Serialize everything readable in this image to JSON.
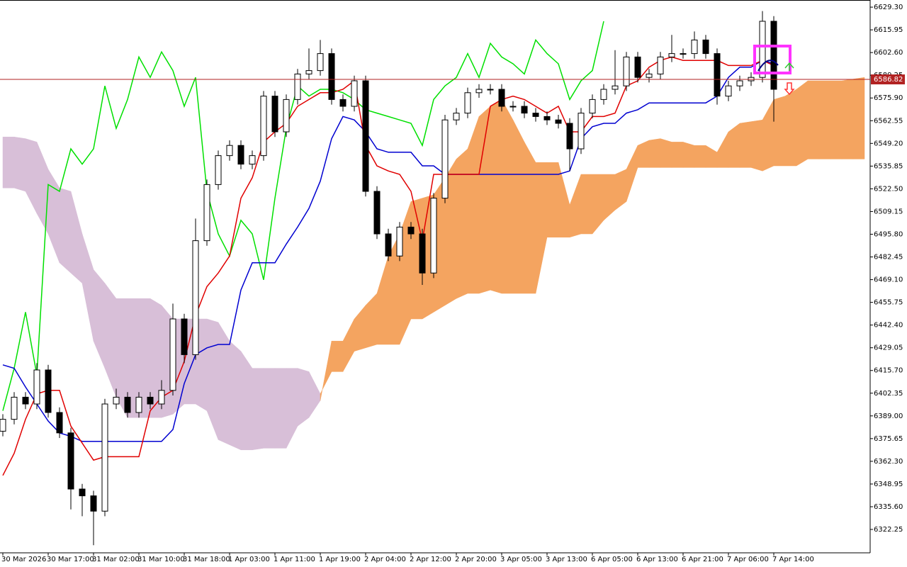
{
  "chart_data": {
    "type": "candlestick",
    "ylim": [
      6308.5,
      6633.5
    ],
    "yticks": [
      {
        "value": 6629.3,
        "label": "6629.30"
      },
      {
        "value": 6615.95,
        "label": "6615.95"
      },
      {
        "value": 6602.6,
        "label": "6602.60"
      },
      {
        "value": 6589.25,
        "label": "6589.25"
      },
      {
        "value": 6575.9,
        "label": "6575.90"
      },
      {
        "value": 6562.55,
        "label": "6562.55"
      },
      {
        "value": 6549.2,
        "label": "6549.20"
      },
      {
        "value": 6535.85,
        "label": "6535.85"
      },
      {
        "value": 6522.5,
        "label": "6522.50"
      },
      {
        "value": 6509.15,
        "label": "6509.15"
      },
      {
        "value": 6495.8,
        "label": "6495.80"
      },
      {
        "value": 6482.45,
        "label": "6482.45"
      },
      {
        "value": 6469.1,
        "label": "6469.10"
      },
      {
        "value": 6455.75,
        "label": "6455.75"
      },
      {
        "value": 6442.4,
        "label": "6442.40"
      },
      {
        "value": 6429.05,
        "label": "6429.05"
      },
      {
        "value": 6415.7,
        "label": "6415.70"
      },
      {
        "value": 6402.35,
        "label": "6402.35"
      },
      {
        "value": 6389,
        "label": "6389.00"
      },
      {
        "value": 6375.65,
        "label": "6375.65"
      },
      {
        "value": 6362.3,
        "label": "6362.30"
      },
      {
        "value": 6348.95,
        "label": "6348.95"
      },
      {
        "value": 6335.6,
        "label": "6335.60"
      },
      {
        "value": 6322.25,
        "label": "6322.25"
      }
    ],
    "categories": [
      "30 Mar 2026",
      null,
      null,
      null,
      "30 Mar 17:00",
      null,
      null,
      null,
      "31 Mar 02:00",
      null,
      null,
      null,
      "31 Mar 10:00",
      null,
      null,
      null,
      "31 Mar 18:00",
      null,
      null,
      null,
      "1 Apr 03:00",
      null,
      null,
      null,
      "1 Apr 11:00",
      null,
      null,
      null,
      "1 Apr 19:00",
      null,
      null,
      null,
      "2 Apr 04:00",
      null,
      null,
      null,
      "2 Apr 12:00",
      null,
      null,
      null,
      "2 Apr 20:00",
      null,
      null,
      null,
      "3 Apr 05:00",
      null,
      null,
      null,
      "3 Apr 13:00",
      null,
      null,
      null,
      "6 Apr 05:00",
      null,
      null,
      null,
      "6 Apr 13:00",
      null,
      null,
      null,
      "6 Apr 21:00",
      null,
      null,
      null,
      "7 Apr 06:00",
      null,
      null,
      null,
      "7 Apr 14:00",
      null,
      null,
      null,
      null,
      null,
      null,
      null,
      null
    ],
    "open": [
      6380,
      6387,
      6400,
      6396,
      6416,
      6391,
      6379,
      6346,
      6342,
      6333,
      6396,
      6400,
      6391,
      6400,
      6396,
      6404,
      6446,
      6425,
      6492,
      6525,
      6542,
      6548,
      6537,
      6542,
      6577,
      6556,
      6575,
      6590,
      6592,
      6602,
      6575,
      6571,
      6586,
      6521,
      6496,
      6483,
      6500,
      6496,
      6473,
      6517,
      6563,
      6567,
      6579,
      6581,
      6581,
      6571,
      6571,
      6567,
      6565,
      6563,
      6561,
      6546,
      6567,
      6575,
      6581,
      6583,
      6600,
      6588,
      6590,
      6600,
      6602,
      6602,
      6610,
      6602,
      6577,
      6583,
      6586,
      6588,
      6621,
      null,
      null,
      null,
      null,
      null,
      null,
      null,
      null
    ],
    "high": [
      6390,
      6403,
      6403,
      6420,
      6419,
      6394,
      6382,
      6349,
      6345,
      6399,
      6405,
      6403,
      6403,
      6403,
      6410,
      6455,
      6449,
      6505,
      6528,
      6545,
      6551,
      6551,
      6545,
      6580,
      6580,
      6578,
      6593,
      6605,
      6610,
      6605,
      6578,
      6589,
      6589,
      6524,
      6499,
      6503,
      6503,
      6499,
      6520,
      6566,
      6570,
      6582,
      6584,
      6584,
      6584,
      6574,
      6574,
      6570,
      6568,
      6566,
      6564,
      6570,
      6578,
      6584,
      6604,
      6603,
      6603,
      6593,
      6603,
      6613,
      6605,
      6615,
      6613,
      6605,
      6586,
      6589,
      6591,
      6627,
      6624,
      null,
      null,
      null,
      null,
      null,
      null,
      null,
      null
    ],
    "low": [
      6377,
      6384,
      6393,
      6393,
      6388,
      6376,
      6334,
      6330,
      6313,
      6330,
      6393,
      6388,
      6388,
      6393,
      6393,
      6401,
      6420,
      6422,
      6489,
      6522,
      6539,
      6534,
      6534,
      6539,
      6553,
      6553,
      6572,
      6587,
      6589,
      6572,
      6568,
      6568,
      6518,
      6493,
      6480,
      6480,
      6493,
      6466,
      6470,
      6514,
      6560,
      6564,
      6576,
      6578,
      6568,
      6568,
      6564,
      6562,
      6560,
      6558,
      6533,
      6543,
      6564,
      6572,
      6578,
      6580,
      6585,
      6585,
      6587,
      6597,
      6599,
      6599,
      6599,
      6572,
      6574,
      6580,
      6583,
      6585,
      6562,
      null,
      null,
      null,
      null,
      null,
      null,
      null,
      null
    ],
    "close": [
      6387,
      6400,
      6396,
      6416,
      6391,
      6379,
      6346,
      6342,
      6333,
      6396,
      6400,
      6391,
      6400,
      6396,
      6404,
      6446,
      6425,
      6492,
      6525,
      6542,
      6548,
      6537,
      6542,
      6577,
      6556,
      6575,
      6590,
      6592,
      6602,
      6575,
      6571,
      6586,
      6521,
      6496,
      6483,
      6500,
      6496,
      6473,
      6517,
      6563,
      6567,
      6579,
      6581,
      6581,
      6571,
      6571,
      6567,
      6565,
      6563,
      6561,
      6546,
      6567,
      6575,
      6581,
      6583,
      6600,
      6588,
      6590,
      6600,
      6602,
      6602,
      6610,
      6602,
      6577,
      6583,
      6586,
      6588,
      6621,
      6581,
      null,
      null,
      null,
      null,
      null,
      null,
      null,
      null
    ],
    "up_color": "#ffffff",
    "down_color": "#000000",
    "cloud": {
      "up_color": "#f4a460",
      "down_color": "#d8bfd8",
      "span_a": [
        6523,
        6523,
        6521,
        6508,
        6496,
        6479,
        6473,
        6467,
        6433,
        6417,
        6400,
        6388,
        6388,
        6388,
        6388,
        6390,
        6396,
        6396,
        6392,
        6375,
        6372,
        6369,
        6369,
        6370,
        6370,
        6370,
        6383,
        6388,
        6398,
        6433,
        6433,
        6446,
        6454,
        6461,
        6483,
        6496,
        6515,
        6517,
        6519,
        6529,
        6540,
        6546,
        6565,
        6571,
        6575,
        6563,
        6550,
        6538,
        6538,
        6538,
        6513,
        6531,
        6531,
        6531,
        6531,
        6534,
        6548,
        6551,
        6552,
        6550,
        6550,
        6548,
        6548,
        6544,
        6556,
        6561,
        6562,
        6563,
        6575,
        6577,
        6581,
        6586,
        6586,
        6586,
        6586,
        6587,
        6588
      ],
      "span_b": [
        6553,
        6553,
        6552,
        6550,
        6534,
        6523,
        6521,
        6496,
        6475,
        6467,
        6458,
        6458,
        6458,
        6458,
        6454,
        6446,
        6446,
        6446,
        6446,
        6444,
        6433,
        6427,
        6417,
        6417,
        6417,
        6417,
        6417,
        6415,
        6402,
        6415,
        6415,
        6427,
        6429,
        6431,
        6431,
        6431,
        6446,
        6446,
        6450,
        6454,
        6458,
        6461,
        6461,
        6463,
        6461,
        6461,
        6461,
        6461,
        6494,
        6494,
        6494,
        6496,
        6496,
        6504,
        6510,
        6515,
        6535,
        6535,
        6535,
        6535,
        6535,
        6535,
        6535,
        6535,
        6535,
        6535,
        6535,
        6533,
        6536,
        6536,
        6536,
        6540,
        6540,
        6540,
        6540,
        6540,
        6540
      ]
    },
    "indicators": [
      {
        "color": "#00e000",
        "values": [
          6392,
          6417,
          6450,
          6413,
          6525,
          6521,
          6546,
          6537,
          6546,
          6583,
          6558,
          6575,
          6600,
          6588,
          6603,
          6592,
          6571,
          6588,
          6521,
          6496,
          6483,
          6504,
          6496,
          6469,
          6517,
          6558,
          6583,
          6577,
          6581,
          6581,
          6579,
          6575,
          6569,
          6567,
          6565,
          6563,
          6561,
          6548,
          6575,
          6583,
          6588,
          6602,
          6588,
          6608,
          6600,
          6596,
          6590,
          6610,
          6602,
          6596,
          6575,
          6586,
          6592,
          6621,
          null,
          null,
          null,
          null,
          null,
          null,
          null,
          null,
          null,
          null,
          null,
          null,
          null,
          null,
          null,
          null,
          null,
          null,
          null,
          null,
          null,
          null,
          null
        ]
      },
      {
        "color": "#0000d0",
        "values": [
          6419,
          6417,
          6406,
          6396,
          6386,
          6379,
          6377,
          6374,
          6374,
          6374,
          6374,
          6374,
          6374,
          6374,
          6374,
          6381,
          6408,
          6425,
          6429,
          6431,
          6431,
          6463,
          6479,
          6479,
          6479,
          6490,
          6500,
          6511,
          6527,
          6552,
          6565,
          6563,
          6556,
          6546,
          6544,
          6544,
          6544,
          6536,
          6536,
          6531,
          6531,
          6531,
          6531,
          6531,
          6531,
          6531,
          6531,
          6531,
          6531,
          6531,
          6533,
          6552,
          6559,
          6561,
          6561,
          6567,
          6569,
          6573,
          6573,
          6573,
          6573,
          6573,
          6573,
          6577,
          6588,
          6594,
          6594,
          6598,
          6596,
          null,
          null,
          null,
          null,
          null,
          null,
          null,
          null
        ]
      },
      {
        "color": "#e00000",
        "values": [
          6354,
          6367,
          6387,
          6402,
          6404,
          6404,
          6383,
          6373,
          6363,
          6365,
          6365,
          6365,
          6365,
          6392,
          6400,
          6404,
          6421,
          6448,
          6465,
          6473,
          6483,
          6517,
          6529,
          6550,
          6556,
          6561,
          6571,
          6575,
          6579,
          6579,
          6581,
          6586,
          6548,
          6536,
          6533,
          6531,
          6521,
          6492,
          6531,
          6531,
          6531,
          6531,
          6531,
          6571,
          6575,
          6577,
          6575,
          6571,
          6567,
          6571,
          6556,
          6556,
          6565,
          6565,
          6567,
          6583,
          6586,
          6594,
          6598,
          6600,
          6598,
          6598,
          6598,
          6598,
          6595,
          6595,
          6595,
          6598,
          6595,
          null,
          null,
          null,
          null,
          null,
          null,
          null,
          null
        ]
      }
    ],
    "current_price": 6586.82,
    "current_price_color": "#b22222"
  }
}
